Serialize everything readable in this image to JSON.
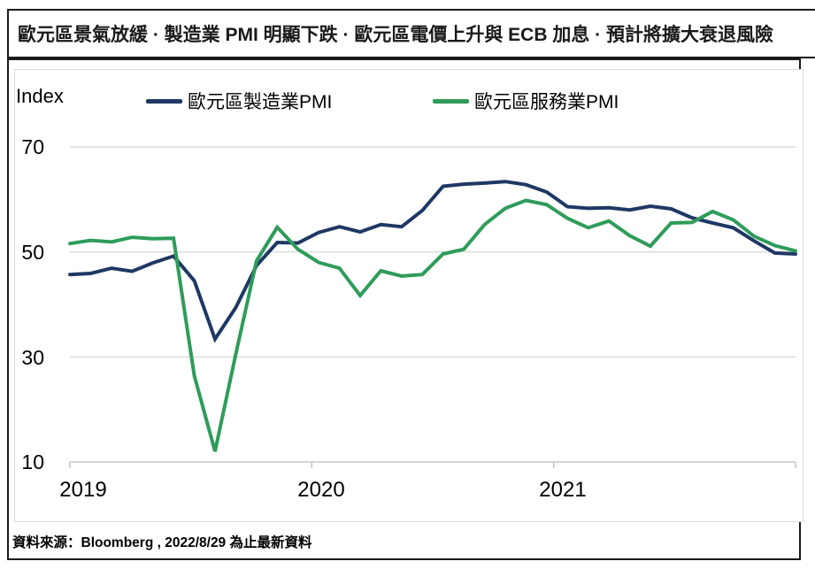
{
  "header": {
    "title": "歐元區景氣放緩 · 製造業 PMI 明顯下跌 · 歐元區電價上升與 ECB 加息 · 預計將擴大衰退風險"
  },
  "chart": {
    "index_label": "Index",
    "legend": [
      {
        "label": "歐元區製造業PMI",
        "color": "#1F3864"
      },
      {
        "label": "歐元區服務業PMI",
        "color": "#2E9C5A"
      }
    ],
    "y_ticks": [
      "70",
      "50",
      "30",
      "10"
    ],
    "x_ticks": [
      "2019",
      "2020",
      "2021"
    ]
  },
  "chart_data": {
    "type": "line",
    "ylabel": "Index",
    "ylim": [
      10,
      70
    ],
    "y_gridlines": [
      70,
      50,
      30,
      10
    ],
    "grid": "horizontal",
    "legend_position": "top",
    "x": [
      "2019-09",
      "2019-10",
      "2019-11",
      "2019-12",
      "2020-01",
      "2020-02",
      "2020-03",
      "2020-04",
      "2020-05",
      "2020-06",
      "2020-07",
      "2020-08",
      "2020-09",
      "2020-10",
      "2020-11",
      "2020-12",
      "2021-01",
      "2021-02",
      "2021-03",
      "2021-04",
      "2021-05",
      "2021-06",
      "2021-07",
      "2021-08",
      "2021-09",
      "2021-10",
      "2021-11",
      "2021-12",
      "2022-01",
      "2022-02",
      "2022-03",
      "2022-04",
      "2022-05",
      "2022-06",
      "2022-07",
      "2022-08"
    ],
    "x_tick_labels": [
      "2019",
      "2020",
      "2021"
    ],
    "series": [
      {
        "name": "歐元區製造業PMI",
        "color": "#1F3864",
        "values": [
          45.7,
          45.9,
          46.9,
          46.3,
          47.9,
          49.2,
          44.5,
          33.4,
          39.4,
          47.4,
          51.8,
          51.7,
          53.7,
          54.8,
          53.8,
          55.2,
          54.8,
          57.9,
          62.5,
          62.9,
          63.1,
          63.4,
          62.8,
          61.4,
          58.6,
          58.3,
          58.4,
          58.0,
          58.7,
          58.2,
          56.5,
          55.5,
          54.6,
          52.1,
          49.8,
          49.6
        ]
      },
      {
        "name": "歐元區服務業PMI",
        "color": "#2E9C5A",
        "values": [
          51.6,
          52.2,
          51.9,
          52.8,
          52.5,
          52.6,
          26.4,
          12.0,
          30.5,
          48.3,
          54.7,
          50.5,
          48.0,
          46.9,
          41.7,
          46.4,
          45.4,
          45.7,
          49.6,
          50.5,
          55.2,
          58.3,
          59.8,
          59.0,
          56.4,
          54.6,
          55.9,
          53.1,
          51.1,
          55.5,
          55.6,
          57.7,
          56.1,
          53.0,
          51.2,
          50.2
        ]
      }
    ]
  },
  "footer": {
    "source": "資料來源：Bloomberg , 2022/8/29 為止最新資料"
  }
}
